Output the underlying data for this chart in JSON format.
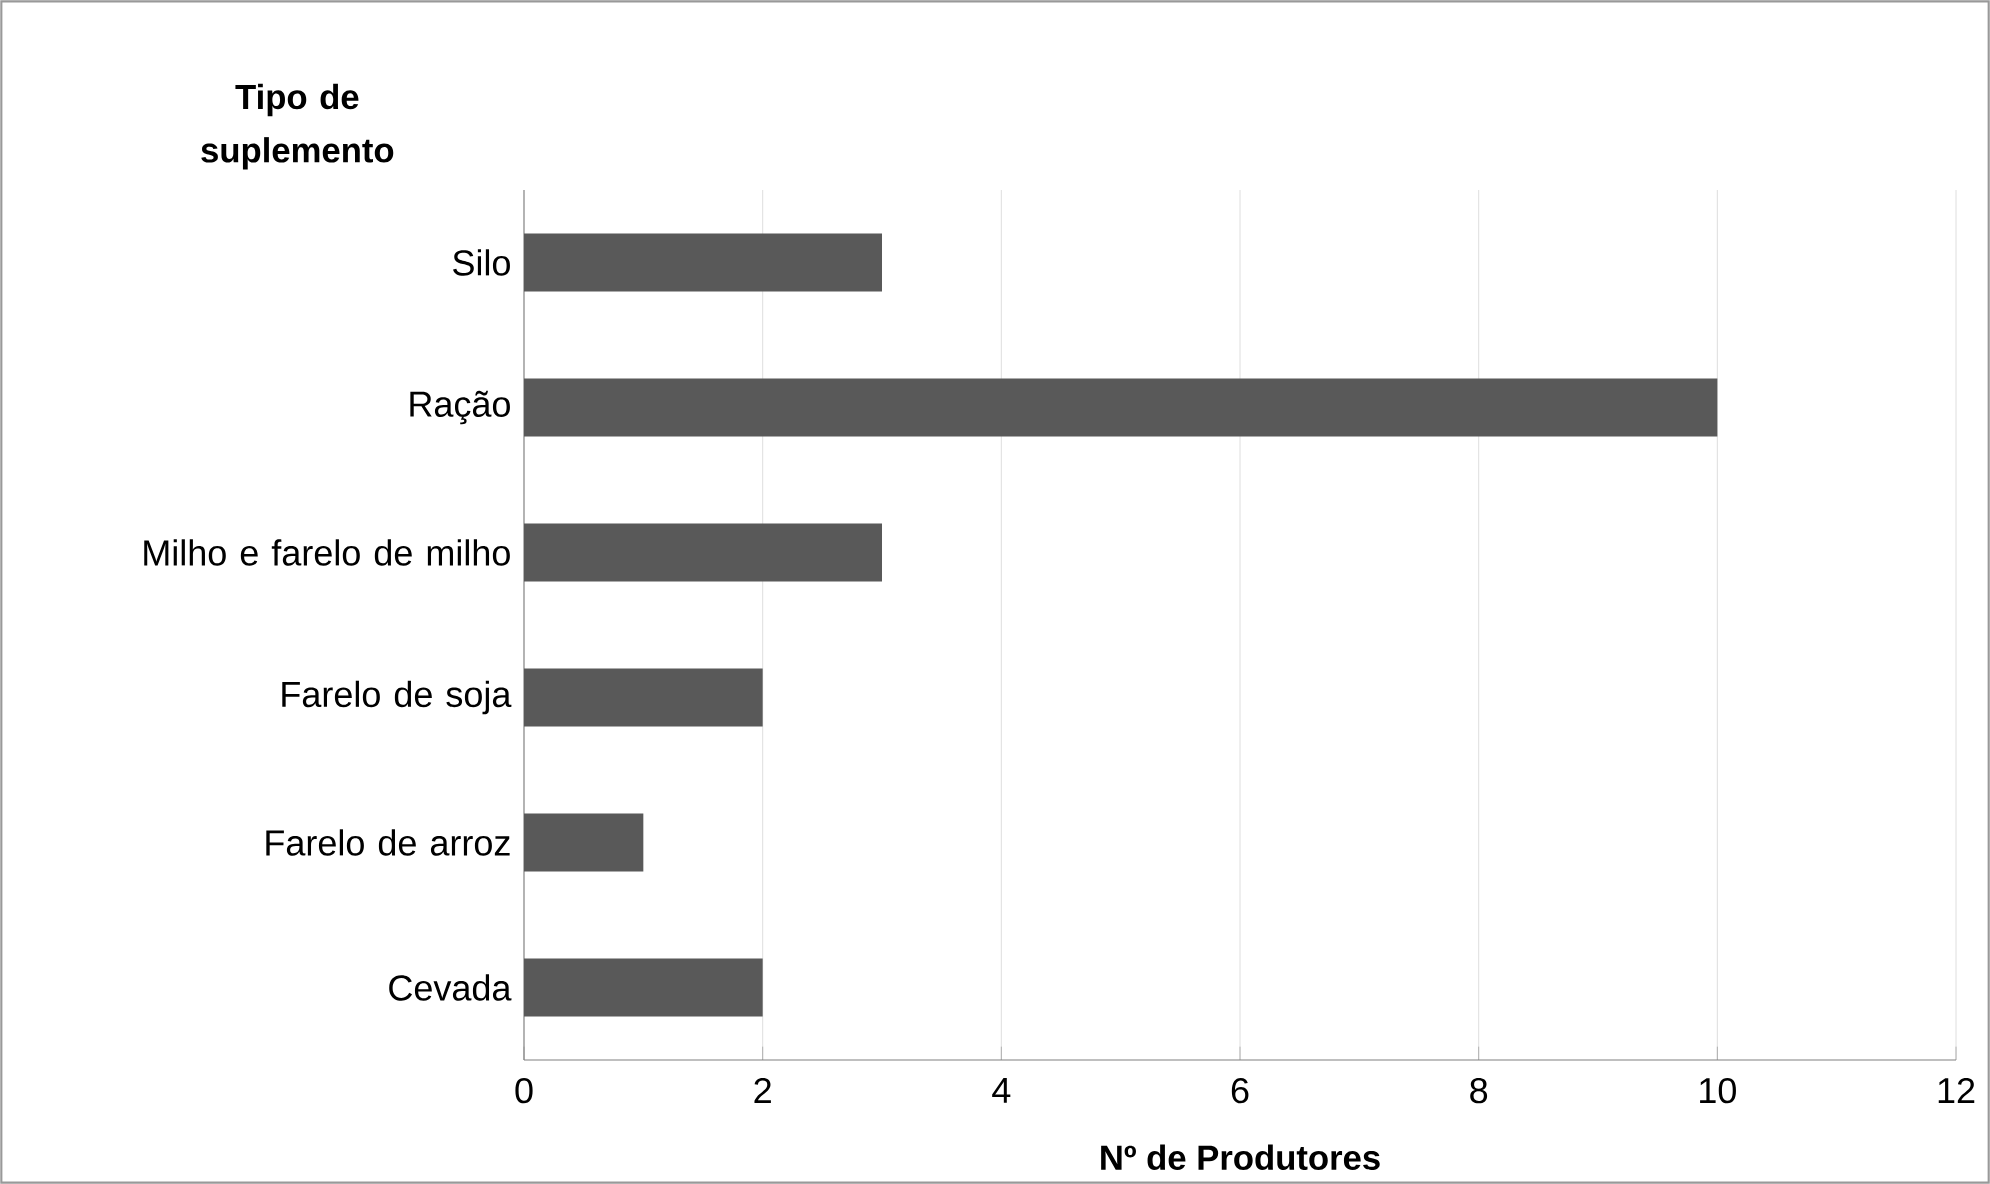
{
  "chart_data": {
    "type": "bar",
    "orientation": "horizontal",
    "ylabel": "Tipo de suplemento",
    "xlabel": "Nº de Produtores",
    "categories": [
      "Silo",
      "Ração",
      "Milho e farelo de milho",
      "Farelo de soja",
      "Farelo de arroz",
      "Cevada"
    ],
    "values": [
      3,
      10,
      3,
      2,
      1,
      2
    ],
    "color": "#595959",
    "xlim": [
      0,
      12
    ],
    "xticks": [
      0,
      2,
      4,
      6,
      8,
      10,
      12
    ],
    "grid": "x"
  }
}
